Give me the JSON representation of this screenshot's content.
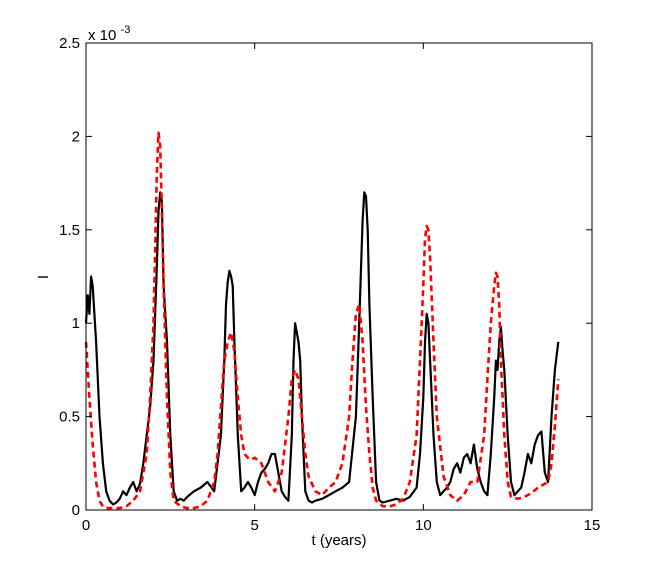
{
  "chart_data": {
    "type": "line",
    "xlabel": "t (years)",
    "ylabel": "I",
    "y_multiplier_label": {
      "base": "x 10",
      "exponent": "-3"
    },
    "xlim": [
      0,
      15
    ],
    "ylim": [
      0,
      2.5
    ],
    "grid": false,
    "x_ticks": [
      0,
      5,
      10,
      15
    ],
    "x_tick_labels": [
      "0",
      "5",
      "10",
      "15"
    ],
    "y_ticks": [
      0,
      0.5,
      1,
      1.5,
      2,
      2.5
    ],
    "y_tick_labels": [
      "0",
      "0.5",
      "1",
      "1.5",
      "2",
      "2.5"
    ],
    "series": [
      {
        "color": "#000000",
        "style": "solid",
        "x": [
          0,
          0.05,
          0.1,
          0.15,
          0.2,
          0.3,
          0.4,
          0.5,
          0.6,
          0.7,
          0.8,
          0.9,
          1.0,
          1.1,
          1.2,
          1.3,
          1.4,
          1.5,
          1.6,
          1.7,
          1.8,
          1.9,
          2.0,
          2.1,
          2.15,
          2.2,
          2.25,
          2.3,
          2.35,
          2.4,
          2.5,
          2.6,
          2.7,
          2.8,
          2.9,
          3.0,
          3.2,
          3.4,
          3.6,
          3.8,
          4.0,
          4.1,
          4.15,
          4.2,
          4.25,
          4.3,
          4.35,
          4.4,
          4.5,
          4.6,
          4.7,
          4.8,
          4.9,
          5.0,
          5.1,
          5.2,
          5.3,
          5.4,
          5.5,
          5.6,
          5.7,
          5.8,
          5.9,
          6.0,
          6.1,
          6.15,
          6.2,
          6.25,
          6.3,
          6.35,
          6.4,
          6.5,
          6.6,
          6.7,
          6.8,
          7.0,
          7.2,
          7.4,
          7.6,
          7.8,
          8.0,
          8.1,
          8.2,
          8.25,
          8.3,
          8.35,
          8.4,
          8.5,
          8.6,
          8.7,
          8.8,
          9.0,
          9.2,
          9.4,
          9.6,
          9.8,
          9.9,
          10.0,
          10.05,
          10.1,
          10.15,
          10.2,
          10.3,
          10.4,
          10.5,
          10.6,
          10.7,
          10.8,
          10.9,
          11.0,
          11.1,
          11.2,
          11.3,
          11.4,
          11.5,
          11.6,
          11.7,
          11.8,
          11.9,
          12.0,
          12.1,
          12.15,
          12.2,
          12.25,
          12.3,
          12.35,
          12.4,
          12.5,
          12.6,
          12.7,
          12.8,
          12.9,
          13.0,
          13.1,
          13.2,
          13.3,
          13.4,
          13.5,
          13.6,
          13.7,
          13.8,
          13.9,
          14.0
        ],
        "y": [
          1.0,
          1.15,
          1.05,
          1.25,
          1.2,
          0.9,
          0.5,
          0.25,
          0.1,
          0.05,
          0.03,
          0.04,
          0.06,
          0.1,
          0.08,
          0.12,
          0.15,
          0.1,
          0.14,
          0.25,
          0.4,
          0.55,
          0.8,
          1.3,
          1.6,
          1.7,
          1.65,
          1.2,
          1.05,
          0.9,
          0.4,
          0.1,
          0.05,
          0.06,
          0.05,
          0.07,
          0.1,
          0.12,
          0.15,
          0.1,
          0.4,
          0.8,
          1.1,
          1.22,
          1.28,
          1.25,
          1.2,
          0.9,
          0.4,
          0.1,
          0.12,
          0.15,
          0.12,
          0.08,
          0.15,
          0.2,
          0.22,
          0.25,
          0.3,
          0.3,
          0.2,
          0.1,
          0.07,
          0.05,
          0.4,
          0.8,
          1.0,
          0.95,
          0.9,
          0.8,
          0.5,
          0.1,
          0.05,
          0.04,
          0.05,
          0.06,
          0.08,
          0.1,
          0.12,
          0.15,
          0.5,
          1.0,
          1.55,
          1.7,
          1.68,
          1.5,
          1.1,
          0.6,
          0.15,
          0.05,
          0.04,
          0.05,
          0.06,
          0.05,
          0.07,
          0.12,
          0.3,
          0.6,
          0.9,
          1.05,
          1.0,
          0.8,
          0.4,
          0.15,
          0.08,
          0.1,
          0.12,
          0.15,
          0.22,
          0.25,
          0.2,
          0.28,
          0.3,
          0.25,
          0.35,
          0.22,
          0.15,
          0.1,
          0.08,
          0.3,
          0.6,
          0.8,
          0.75,
          0.9,
          0.98,
          0.85,
          0.75,
          0.4,
          0.15,
          0.08,
          0.1,
          0.12,
          0.2,
          0.3,
          0.25,
          0.35,
          0.4,
          0.42,
          0.2,
          0.15,
          0.5,
          0.75,
          0.9
        ]
      },
      {
        "color": "#ff0000",
        "style": "dashed",
        "x": [
          0,
          0.1,
          0.2,
          0.3,
          0.4,
          0.5,
          0.6,
          0.7,
          0.8,
          1.0,
          1.2,
          1.4,
          1.6,
          1.8,
          1.9,
          2.0,
          2.05,
          2.1,
          2.15,
          2.2,
          2.25,
          2.3,
          2.4,
          2.5,
          2.6,
          2.8,
          3.0,
          3.2,
          3.4,
          3.6,
          3.8,
          3.9,
          4.0,
          4.1,
          4.2,
          4.3,
          4.4,
          4.5,
          4.6,
          4.7,
          4.8,
          4.9,
          5.0,
          5.2,
          5.4,
          5.6,
          5.8,
          6.0,
          6.1,
          6.2,
          6.3,
          6.4,
          6.5,
          6.6,
          6.8,
          7.0,
          7.2,
          7.4,
          7.6,
          7.8,
          7.9,
          8.0,
          8.1,
          8.2,
          8.3,
          8.4,
          8.5,
          8.6,
          8.8,
          9.0,
          9.2,
          9.4,
          9.6,
          9.8,
          9.9,
          10.0,
          10.05,
          10.1,
          10.15,
          10.2,
          10.3,
          10.4,
          10.6,
          10.8,
          11.0,
          11.2,
          11.4,
          11.6,
          11.8,
          11.9,
          12.0,
          12.1,
          12.15,
          12.2,
          12.25,
          12.3,
          12.4,
          12.5,
          12.6,
          12.8,
          13.0,
          13.2,
          13.4,
          13.6,
          13.7,
          13.8,
          13.9,
          14.0
        ],
        "y": [
          0.9,
          0.6,
          0.35,
          0.15,
          0.05,
          0.02,
          0.01,
          0.01,
          0.01,
          0.01,
          0.02,
          0.05,
          0.1,
          0.3,
          0.6,
          1.0,
          1.4,
          1.8,
          2.02,
          1.95,
          1.6,
          1.2,
          0.6,
          0.2,
          0.05,
          0.02,
          0.01,
          0.01,
          0.02,
          0.05,
          0.15,
          0.3,
          0.55,
          0.8,
          0.9,
          0.95,
          0.85,
          0.6,
          0.4,
          0.3,
          0.28,
          0.27,
          0.28,
          0.25,
          0.15,
          0.1,
          0.2,
          0.5,
          0.7,
          0.75,
          0.7,
          0.5,
          0.3,
          0.18,
          0.1,
          0.08,
          0.12,
          0.15,
          0.25,
          0.5,
          0.8,
          1.05,
          1.1,
          0.9,
          0.55,
          0.3,
          0.12,
          0.05,
          0.02,
          0.02,
          0.03,
          0.06,
          0.15,
          0.4,
          0.8,
          1.2,
          1.45,
          1.52,
          1.5,
          1.35,
          0.9,
          0.5,
          0.18,
          0.08,
          0.05,
          0.08,
          0.15,
          0.15,
          0.4,
          0.7,
          1.0,
          1.2,
          1.27,
          1.25,
          1.1,
          0.8,
          0.4,
          0.15,
          0.07,
          0.06,
          0.07,
          0.09,
          0.12,
          0.14,
          0.15,
          0.25,
          0.45,
          0.7
        ]
      }
    ]
  }
}
